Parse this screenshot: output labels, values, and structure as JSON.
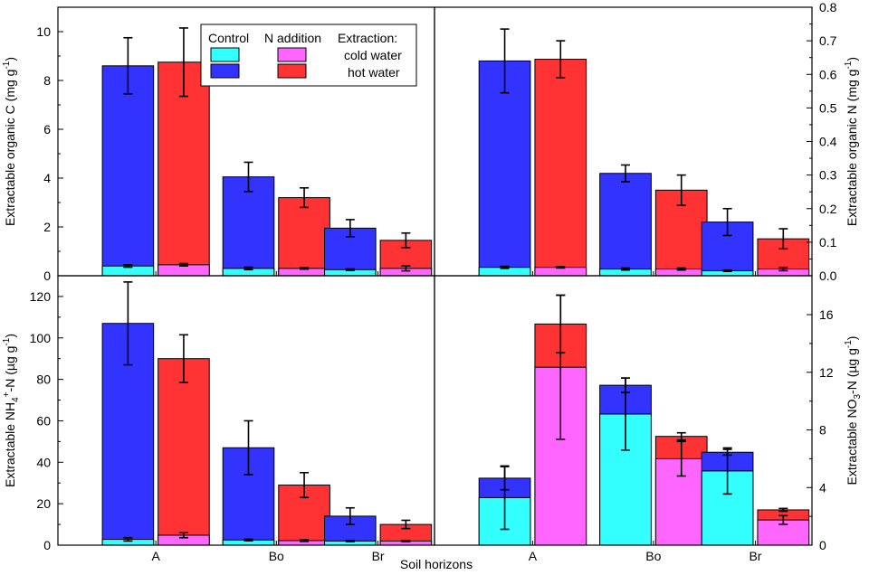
{
  "figure": {
    "xlabel": "Soil horizons",
    "colors": {
      "control_cold": "#33ffff",
      "control_hot": "#3333ff",
      "n_cold": "#ff66ff",
      "n_hot": "#ff3333"
    },
    "legend": {
      "control_label": "Control",
      "n_label": "N addition",
      "extraction_label": "Extraction:",
      "cold_label": "cold water",
      "hot_label": "hot water",
      "placement": "top-center"
    }
  },
  "chart_data": [
    {
      "type": "bar",
      "id": "top-left",
      "title": "",
      "ylabel": "Extractable organic C (mg g",
      "ylabel_sup": "-1",
      "ylabel_end": ")",
      "ylim": [
        0,
        11
      ],
      "yticks": [
        0,
        2,
        4,
        6,
        8,
        10
      ],
      "categories": [
        "A",
        "Bo",
        "Br"
      ],
      "axis_side": "left",
      "series": [
        {
          "name": "Control cold water",
          "values": [
            0.4,
            0.3,
            0.25
          ],
          "errors": [
            0.05,
            0.05,
            0.03
          ]
        },
        {
          "name": "Control hot water",
          "values": [
            8.6,
            4.05,
            1.95
          ],
          "errors": [
            1.15,
            0.6,
            0.35
          ]
        },
        {
          "name": "N addition cold water",
          "values": [
            0.45,
            0.3,
            0.3
          ],
          "errors": [
            0.05,
            0.03,
            0.1
          ]
        },
        {
          "name": "N addition hot water",
          "values": [
            8.75,
            3.2,
            1.45
          ],
          "errors": [
            1.4,
            0.4,
            0.3
          ]
        }
      ]
    },
    {
      "type": "bar",
      "id": "top-right",
      "title": "",
      "ylabel": "Extractable organic N (mg g",
      "ylabel_sup": "-1",
      "ylabel_end": ")",
      "ylim": [
        0,
        0.8
      ],
      "yticks": [
        0.0,
        0.1,
        0.2,
        0.3,
        0.4,
        0.5,
        0.6,
        0.7,
        0.8
      ],
      "ytick_labels": [
        "0.0",
        "0.1",
        "0.2",
        "0.3",
        "0.4",
        "0.5",
        "0.6",
        "0.7",
        "0.8"
      ],
      "categories": [
        "A",
        "Bo",
        "Br"
      ],
      "axis_side": "right",
      "series": [
        {
          "name": "Control cold water",
          "values": [
            0.025,
            0.02,
            0.015
          ],
          "errors": [
            0.003,
            0.003,
            0.002
          ]
        },
        {
          "name": "Control hot water",
          "values": [
            0.64,
            0.305,
            0.16
          ],
          "errors": [
            0.095,
            0.025,
            0.04
          ]
        },
        {
          "name": "N addition cold water",
          "values": [
            0.025,
            0.02,
            0.02
          ],
          "errors": [
            0.002,
            0.003,
            0.005
          ]
        },
        {
          "name": "N addition hot water",
          "values": [
            0.645,
            0.255,
            0.11
          ],
          "errors": [
            0.055,
            0.045,
            0.03
          ]
        }
      ]
    },
    {
      "type": "bar",
      "id": "bottom-left",
      "title": "",
      "ylabel_parts": [
        "Extractable NH",
        "4",
        "+",
        "-N (µg g",
        "-1",
        ")"
      ],
      "ylim": [
        0,
        130
      ],
      "yticks": [
        0,
        20,
        40,
        60,
        80,
        100,
        120
      ],
      "categories": [
        "A",
        "Bo",
        "Br"
      ],
      "axis_side": "left",
      "series": [
        {
          "name": "Control cold water",
          "values": [
            2.8,
            2.5,
            2.0
          ],
          "errors": [
            0.8,
            0.4,
            0.3
          ]
        },
        {
          "name": "Control hot water",
          "values": [
            107,
            47,
            14
          ],
          "errors": [
            20,
            13,
            4
          ]
        },
        {
          "name": "N addition cold water",
          "values": [
            4.8,
            2.2,
            2.0
          ],
          "errors": [
            1.2,
            0.4,
            0.3
          ]
        },
        {
          "name": "N addition hot water",
          "values": [
            90,
            29,
            10
          ],
          "errors": [
            11.5,
            6,
            2
          ]
        }
      ]
    },
    {
      "type": "bar",
      "id": "bottom-right",
      "title": "",
      "ylabel_parts": [
        "Extractable NO",
        "3",
        "",
        "-N (µg g",
        "-1",
        ")"
      ],
      "ylim": [
        0,
        18.7
      ],
      "yticks": [
        0,
        4,
        8,
        12,
        16
      ],
      "categories": [
        "A",
        "Bo",
        "Br"
      ],
      "axis_side": "right",
      "series": [
        {
          "name": "Control cold water",
          "values": [
            3.3,
            9.1,
            5.15
          ],
          "errors": [
            2.2,
            2.5,
            1.6
          ]
        },
        {
          "name": "Control hot water",
          "values": [
            4.65,
            11.1,
            6.45
          ],
          "errors": [
            0.8,
            0.5,
            0.2
          ]
        },
        {
          "name": "N addition cold water",
          "values": [
            12.35,
            6.0,
            1.75
          ],
          "errors": [
            5.0,
            1.2,
            0.3
          ]
        },
        {
          "name": "N addition hot water",
          "values": [
            15.35,
            7.55,
            2.45
          ],
          "errors": [
            2.0,
            0.25,
            0.1
          ]
        }
      ]
    }
  ]
}
